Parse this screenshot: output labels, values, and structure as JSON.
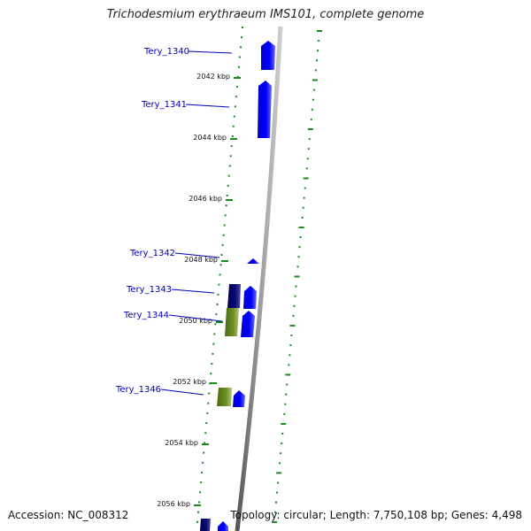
{
  "title": "Trichodesmium erythraeum IMS101, complete genome",
  "footer": {
    "accession": "Accession: NC_008312",
    "summary": "Topology: circular; Length: 7,750,108 bp; Genes: 4,498"
  },
  "colors": {
    "forward_gene": "#0000ff",
    "reverse_gene": "#0a0a78",
    "other_gene": "#6b8e23",
    "dots": "#1a8a1a",
    "backbone": "#888888",
    "label": "#0000b4"
  },
  "kbp_marks": [
    "2042 kbp",
    "2044 kbp",
    "2046 kbp",
    "2048 kbp",
    "2050 kbp",
    "2052 kbp",
    "2054 kbp",
    "2056 kbp"
  ],
  "genes": [
    {
      "label": "Tery_1340",
      "type": "forward"
    },
    {
      "label": "Tery_1341",
      "type": "forward"
    },
    {
      "label": "Tery_1342",
      "type": "forward"
    },
    {
      "label": "Tery_1343",
      "type": "forward_pair"
    },
    {
      "label": "Tery_1344",
      "type": "other_pair"
    },
    {
      "label": "Tery_1346",
      "type": "other_pair"
    }
  ]
}
